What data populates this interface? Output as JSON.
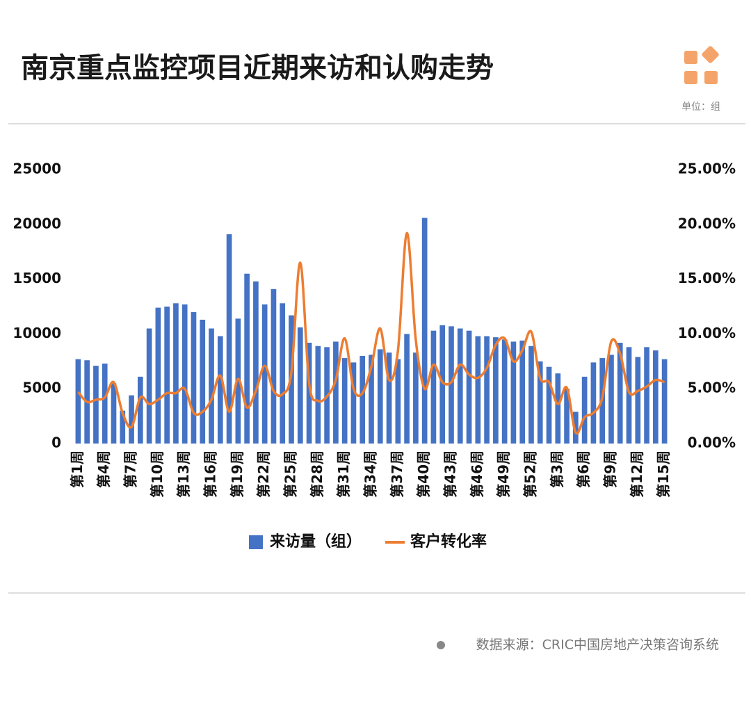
{
  "title": "南京重点监控项目近期来访和认购走势",
  "unit_note": "单位：组",
  "source": "数据来源：CRIC中国房地产决策咨询系统",
  "chart_data": {
    "type": "bar-line",
    "categories": [
      "第1周",
      null,
      null,
      "第4周",
      null,
      null,
      "第7周",
      null,
      null,
      "第10周",
      null,
      null,
      "第13周",
      null,
      null,
      "第16周",
      null,
      null,
      "第19周",
      null,
      null,
      "第22周",
      null,
      null,
      "第25周",
      null,
      null,
      "第28周",
      null,
      null,
      "第31周",
      null,
      null,
      "第34周",
      null,
      null,
      "第37周",
      null,
      null,
      "第40周",
      null,
      null,
      "第43周",
      null,
      null,
      "第46周",
      null,
      null,
      "第49周",
      null,
      null,
      "第52周",
      null,
      null,
      "第3周",
      null,
      null,
      "第6周",
      null,
      null,
      "第9周",
      null,
      null,
      "第12周",
      null,
      null,
      "第15周"
    ],
    "series": [
      {
        "name": "来访量（组）",
        "type": "bar",
        "color": "#4472c4",
        "values": [
          7700,
          7600,
          7100,
          7300,
          5500,
          3000,
          4400,
          6100,
          10500,
          12400,
          12500,
          12800,
          12700,
          12000,
          11300,
          10500,
          9800,
          19100,
          11400,
          15500,
          14800,
          12700,
          14100,
          12800,
          11700,
          10600,
          9200,
          8900,
          8800,
          9300,
          7800,
          7400,
          8000,
          8100,
          8600,
          8300,
          7700,
          10000,
          8300,
          20600,
          10300,
          10800,
          10700,
          10500,
          10300,
          9800,
          9800,
          9700,
          9500,
          9300,
          9400,
          8900,
          7500,
          7000,
          6400,
          5000,
          2900,
          6100,
          7400,
          7800,
          8100,
          9200,
          8800,
          7900,
          8800,
          8500,
          7700
        ]
      },
      {
        "name": "客户转化率",
        "type": "line",
        "axis": "y2",
        "color": "#ed7d31",
        "values": [
          4.7,
          3.8,
          4.0,
          4.2,
          5.6,
          2.8,
          1.5,
          4.2,
          3.6,
          4.0,
          4.6,
          4.6,
          5.0,
          2.8,
          2.9,
          4.0,
          6.2,
          2.9,
          5.9,
          3.3,
          4.8,
          7.1,
          4.8,
          4.5,
          6.5,
          16.5,
          5.5,
          3.9,
          4.3,
          5.8,
          9.6,
          5.0,
          4.6,
          7.0,
          10.5,
          5.8,
          8.5,
          19.2,
          9.5,
          5.0,
          7.2,
          5.6,
          5.6,
          7.2,
          6.3,
          6.0,
          6.9,
          9.0,
          9.6,
          7.5,
          8.5,
          10.2,
          6.0,
          5.6,
          3.6,
          5.1,
          1.0,
          2.4,
          2.8,
          4.2,
          9.3,
          8.2,
          4.7,
          4.8,
          5.2,
          5.8,
          5.6
        ]
      }
    ],
    "ylim": [
      0,
      25000
    ],
    "yticks": [
      0,
      5000,
      10000,
      15000,
      20000,
      25000
    ],
    "y2lim": [
      0,
      25
    ],
    "y2ticks": [
      {
        "value": 0,
        "label": "0.00%"
      },
      {
        "value": 5,
        "label": "5.00%"
      },
      {
        "value": 10,
        "label": "10.00%"
      },
      {
        "value": 15,
        "label": "15.00%"
      },
      {
        "value": 20,
        "label": "20.00%"
      },
      {
        "value": 25,
        "label": "25.00%"
      }
    ],
    "grid": false,
    "legend": "bottom"
  }
}
